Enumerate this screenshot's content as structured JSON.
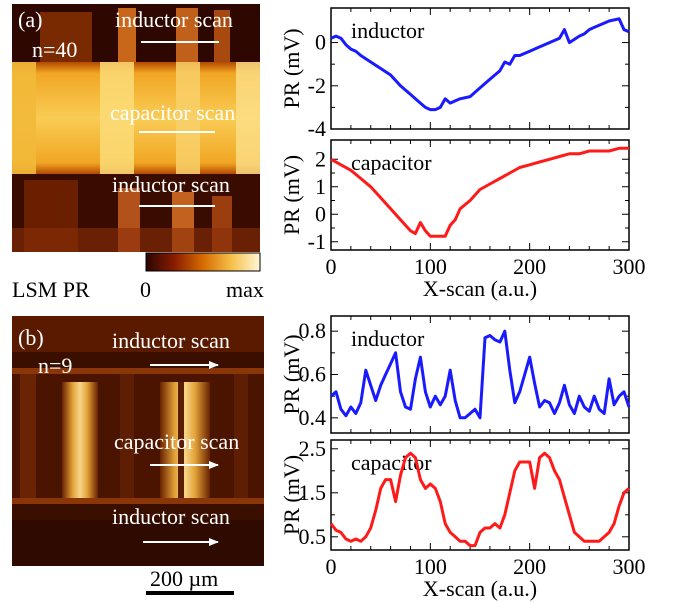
{
  "panel_a": {
    "label": "(a)",
    "n_label": "n=40",
    "scan_labels": [
      "inductor scan",
      "capacitor scan",
      "inductor scan"
    ],
    "colorbar": {
      "label": "LSM PR",
      "min_label": "0",
      "max_label": "max",
      "colors": [
        "#2a0500",
        "#8a1c00",
        "#d56a00",
        "#f6c04a",
        "#fff7d8"
      ]
    }
  },
  "panel_b": {
    "label": "(b)",
    "n_label": "n=9",
    "scan_labels": [
      "inductor scan",
      "capacitor scan",
      "inductor scan"
    ],
    "scale_bar": "200 µm"
  },
  "colors": {
    "inductor": "#1a1aff",
    "capacitor": "#ff1a1a"
  },
  "chart_data": [
    {
      "type": "line",
      "panel": "a",
      "annotation": "inductor",
      "ylabel": "PR (mV)",
      "xlabel": "",
      "xlim": [
        0,
        300
      ],
      "ylim": [
        -4,
        1.6
      ],
      "xticks": [
        "0",
        "100",
        "200",
        "300"
      ],
      "yticks": [
        "0",
        "-2",
        "-4"
      ],
      "ytick_values": [
        0,
        -2,
        -4
      ],
      "series": [
        {
          "color": "#1a1aff",
          "x": [
            0,
            5,
            10,
            15,
            20,
            25,
            30,
            40,
            50,
            60,
            70,
            75,
            80,
            85,
            90,
            95,
            100,
            105,
            110,
            115,
            120,
            125,
            130,
            140,
            150,
            160,
            170,
            175,
            180,
            185,
            190,
            200,
            210,
            220,
            230,
            235,
            240,
            250,
            255,
            260,
            265,
            270,
            280,
            290,
            295,
            300
          ],
          "y": [
            0.2,
            0.3,
            0.2,
            -0.1,
            -0.3,
            -0.4,
            -0.6,
            -0.9,
            -1.2,
            -1.5,
            -2.0,
            -2.2,
            -2.4,
            -2.6,
            -2.8,
            -3.0,
            -3.1,
            -3.1,
            -3.0,
            -2.6,
            -2.8,
            -2.7,
            -2.6,
            -2.5,
            -2.1,
            -1.7,
            -1.3,
            -0.9,
            -1.0,
            -0.6,
            -0.6,
            -0.4,
            -0.2,
            0.0,
            0.2,
            0.6,
            0.0,
            0.3,
            0.4,
            0.6,
            0.7,
            0.8,
            1.0,
            1.1,
            0.6,
            0.5
          ]
        }
      ]
    },
    {
      "type": "line",
      "panel": "a",
      "annotation": "capacitor",
      "ylabel": "PR (mV)",
      "xlabel": "X-scan (a.u.)",
      "xlim": [
        0,
        300
      ],
      "ylim": [
        -1.3,
        2.7
      ],
      "xticks": [
        "0",
        "100",
        "200",
        "300"
      ],
      "yticks": [
        "2",
        "1",
        "0",
        "-1"
      ],
      "ytick_values": [
        2,
        1,
        0,
        -1
      ],
      "series": [
        {
          "color": "#ff1a1a",
          "x": [
            0,
            5,
            10,
            20,
            30,
            40,
            50,
            60,
            70,
            75,
            80,
            85,
            90,
            95,
            100,
            105,
            110,
            115,
            120,
            125,
            130,
            140,
            150,
            160,
            170,
            180,
            190,
            200,
            210,
            220,
            230,
            240,
            250,
            260,
            270,
            280,
            290,
            300
          ],
          "y": [
            2.0,
            1.9,
            1.8,
            1.6,
            1.3,
            1.0,
            0.6,
            0.2,
            -0.2,
            -0.4,
            -0.6,
            -0.7,
            -0.3,
            -0.6,
            -0.8,
            -0.8,
            -0.8,
            -0.8,
            -0.4,
            -0.2,
            0.2,
            0.5,
            0.9,
            1.1,
            1.3,
            1.5,
            1.7,
            1.8,
            1.9,
            2.0,
            2.1,
            2.2,
            2.2,
            2.3,
            2.3,
            2.3,
            2.4,
            2.4
          ]
        }
      ]
    },
    {
      "type": "line",
      "panel": "b",
      "annotation": "inductor",
      "ylabel": "PR (mV)",
      "xlabel": "",
      "xlim": [
        0,
        300
      ],
      "ylim": [
        0.33,
        0.87
      ],
      "xticks": [
        "0",
        "100",
        "200",
        "300"
      ],
      "yticks": [
        "0.8",
        "0.6",
        "0.4"
      ],
      "ytick_values": [
        0.8,
        0.6,
        0.4
      ],
      "series": [
        {
          "color": "#1a1aff",
          "x": [
            0,
            5,
            10,
            15,
            20,
            25,
            30,
            35,
            40,
            45,
            50,
            55,
            60,
            65,
            70,
            75,
            80,
            85,
            90,
            95,
            100,
            105,
            110,
            115,
            120,
            125,
            130,
            135,
            140,
            145,
            150,
            155,
            160,
            165,
            170,
            175,
            180,
            185,
            190,
            195,
            200,
            205,
            210,
            215,
            220,
            225,
            230,
            235,
            240,
            245,
            250,
            255,
            260,
            265,
            270,
            275,
            280,
            285,
            290,
            295,
            300
          ],
          "y": [
            0.5,
            0.52,
            0.44,
            0.41,
            0.45,
            0.42,
            0.47,
            0.62,
            0.55,
            0.48,
            0.55,
            0.6,
            0.65,
            0.7,
            0.52,
            0.45,
            0.44,
            0.58,
            0.68,
            0.52,
            0.45,
            0.5,
            0.46,
            0.5,
            0.62,
            0.48,
            0.4,
            0.4,
            0.42,
            0.44,
            0.4,
            0.77,
            0.78,
            0.76,
            0.75,
            0.8,
            0.62,
            0.47,
            0.52,
            0.6,
            0.68,
            0.56,
            0.45,
            0.48,
            0.47,
            0.42,
            0.47,
            0.55,
            0.46,
            0.42,
            0.5,
            0.45,
            0.43,
            0.5,
            0.44,
            0.42,
            0.58,
            0.46,
            0.5,
            0.52,
            0.45
          ]
        }
      ]
    },
    {
      "type": "line",
      "panel": "b",
      "annotation": "capacitor",
      "ylabel": "PR (mV)",
      "xlabel": "X-scan (a.u.)",
      "xlim": [
        0,
        300
      ],
      "ylim": [
        0.2,
        2.7
      ],
      "xticks": [
        "0",
        "100",
        "200",
        "300"
      ],
      "yticks": [
        "2.5",
        "1.5",
        "0.5"
      ],
      "ytick_values": [
        2.5,
        1.5,
        0.5
      ],
      "series": [
        {
          "color": "#ff1a1a",
          "x": [
            0,
            5,
            10,
            15,
            20,
            25,
            30,
            35,
            40,
            45,
            50,
            55,
            60,
            65,
            70,
            75,
            80,
            85,
            90,
            95,
            100,
            105,
            110,
            115,
            120,
            125,
            130,
            135,
            140,
            145,
            150,
            155,
            160,
            165,
            170,
            175,
            180,
            185,
            190,
            195,
            200,
            205,
            210,
            215,
            220,
            225,
            230,
            235,
            240,
            245,
            250,
            255,
            260,
            265,
            270,
            275,
            280,
            285,
            290,
            295,
            300
          ],
          "y": [
            0.8,
            0.65,
            0.6,
            0.45,
            0.4,
            0.45,
            0.4,
            0.5,
            0.7,
            1.1,
            1.6,
            1.8,
            1.8,
            1.3,
            1.9,
            2.3,
            2.4,
            2.3,
            1.8,
            1.6,
            1.7,
            1.6,
            1.3,
            0.8,
            0.6,
            0.5,
            0.4,
            0.4,
            0.3,
            0.3,
            0.6,
            0.7,
            0.7,
            0.8,
            0.7,
            1.0,
            1.5,
            2.0,
            2.2,
            2.2,
            2.2,
            1.6,
            2.3,
            2.4,
            2.3,
            2.0,
            1.8,
            1.4,
            1.0,
            0.6,
            0.5,
            0.4,
            0.4,
            0.4,
            0.4,
            0.5,
            0.6,
            0.8,
            1.2,
            1.5,
            1.6
          ]
        }
      ]
    }
  ]
}
